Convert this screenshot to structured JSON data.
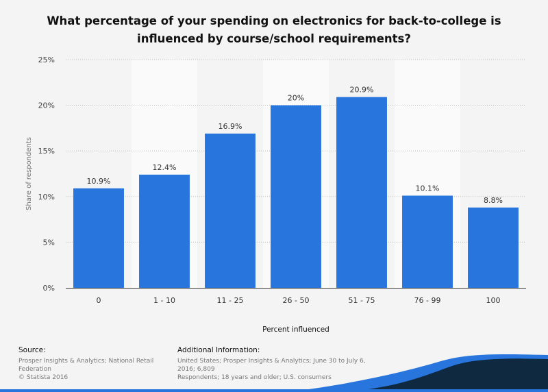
{
  "chart_data": {
    "type": "bar",
    "title_lines": [
      "What percentage of your spending on electronics for back-to-college is",
      "influenced by course/school requirements?"
    ],
    "categories": [
      "0",
      "1 - 10",
      "11 - 25",
      "26 - 50",
      "51 - 75",
      "76 - 99",
      "100"
    ],
    "values": [
      10.9,
      12.4,
      16.9,
      20,
      20.9,
      10.1,
      8.8
    ],
    "data_labels": [
      "10.9%",
      "12.4%",
      "16.9%",
      "20%",
      "20.9%",
      "10.1%",
      "8.8%"
    ],
    "xlabel": "Percent influenced",
    "ylabel": "Share of respondents",
    "ylim": [
      0,
      25
    ],
    "yticks": [
      0,
      5,
      10,
      15,
      20,
      25
    ],
    "ytick_labels": [
      "0%",
      "5%",
      "10%",
      "15%",
      "20%",
      "25%"
    ],
    "grid": true,
    "bar_color": "#2876dd"
  },
  "footer": {
    "source_heading": "Source:",
    "source_lines": [
      "Prosper Insights & Analytics; National Retail",
      "Federation",
      "© Statista 2016"
    ],
    "info_heading": "Additional Information:",
    "info_lines": [
      "United States; Prosper Insights & Analytics; June 30 to July 6, 2016; 6,809",
      "Respondents; 18 years and older; U.S. consumers"
    ]
  }
}
